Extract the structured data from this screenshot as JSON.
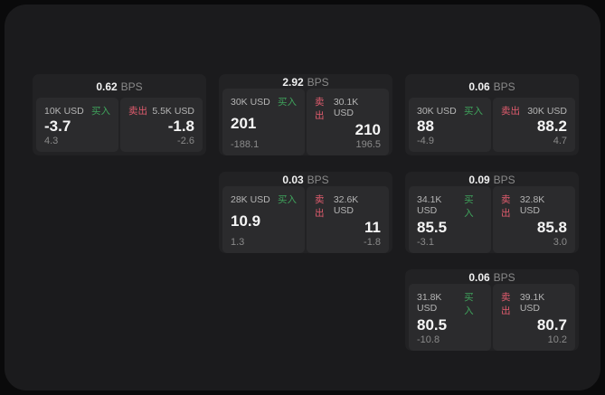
{
  "labels": {
    "buy": "买入",
    "sell": "卖出",
    "bps_unit": "BPS"
  },
  "colors": {
    "buy": "#3fa35c",
    "sell": "#e25c6e",
    "page_bg": "#0a0a0b",
    "window_bg": "#1b1b1d",
    "card_bg": "#222224",
    "panel_bg": "#2b2b2d"
  },
  "cards": [
    {
      "row": 0,
      "col": 0,
      "bps": "0.62",
      "buy": {
        "size": "10K USD",
        "price": "-3.7",
        "change": "4.3"
      },
      "sell": {
        "size": "5.5K USD",
        "price": "-1.8",
        "change": "-2.6"
      }
    },
    {
      "row": 0,
      "col": 1,
      "bps": "2.92",
      "buy": {
        "size": "30K USD",
        "price": "201",
        "change": "-188.1"
      },
      "sell": {
        "size": "30.1K USD",
        "price": "210",
        "change": "196.5"
      }
    },
    {
      "row": 0,
      "col": 2,
      "bps": "0.06",
      "buy": {
        "size": "30K USD",
        "price": "88",
        "change": "-4.9"
      },
      "sell": {
        "size": "30K USD",
        "price": "88.2",
        "change": "4.7"
      }
    },
    {
      "row": 1,
      "col": 1,
      "bps": "0.03",
      "buy": {
        "size": "28K USD",
        "price": "10.9",
        "change": "1.3"
      },
      "sell": {
        "size": "32.6K USD",
        "price": "11",
        "change": "-1.8"
      }
    },
    {
      "row": 1,
      "col": 2,
      "bps": "0.09",
      "buy": {
        "size": "34.1K USD",
        "price": "85.5",
        "change": "-3.1"
      },
      "sell": {
        "size": "32.8K USD",
        "price": "85.8",
        "change": "3.0"
      }
    },
    {
      "row": 2,
      "col": 2,
      "bps": "0.06",
      "buy": {
        "size": "31.8K USD",
        "price": "80.5",
        "change": "-10.8"
      },
      "sell": {
        "size": "39.1K USD",
        "price": "80.7",
        "change": "10.2"
      }
    }
  ]
}
